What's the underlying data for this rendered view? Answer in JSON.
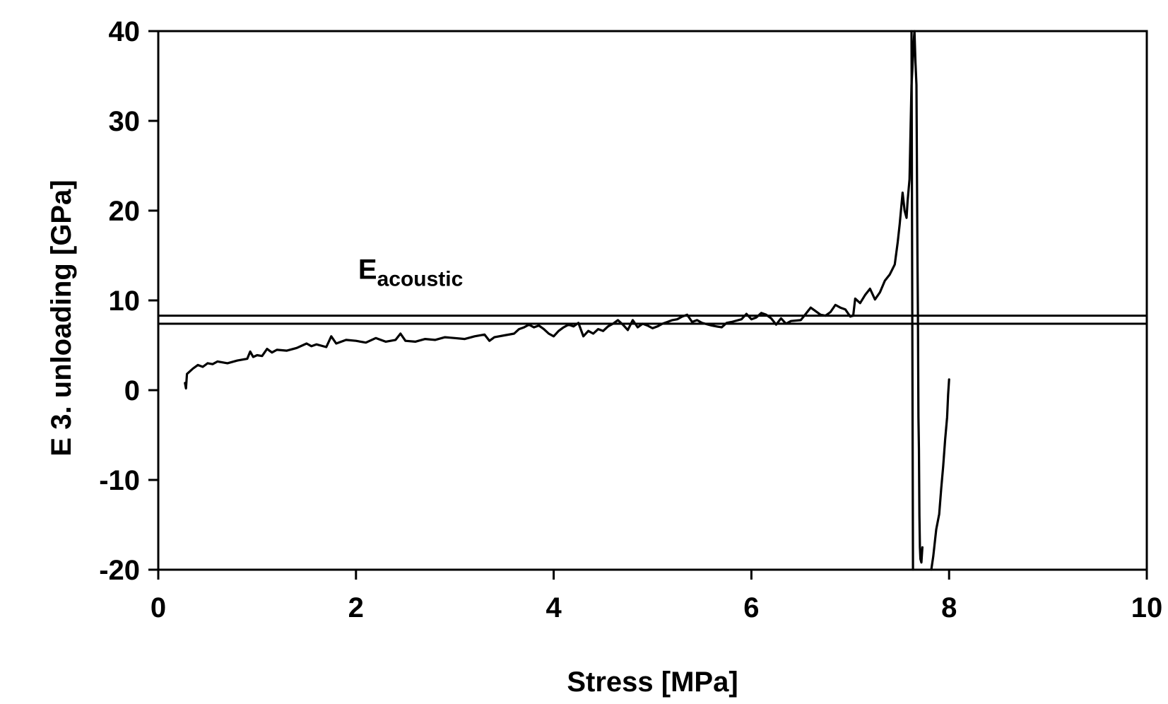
{
  "chart_data": {
    "type": "line",
    "xlabel": "Stress [MPa]",
    "ylabel": "E 3. unloading [GPa]",
    "xlim": [
      0,
      10
    ],
    "ylim": [
      -20,
      40
    ],
    "x_ticks": [
      0,
      2,
      4,
      6,
      8,
      10
    ],
    "y_ticks": [
      -20,
      -10,
      0,
      10,
      20,
      30,
      40
    ],
    "x_tick_labels": [
      "0",
      "2",
      "4",
      "6",
      "8",
      "10"
    ],
    "y_tick_labels": [
      "-20",
      "-10",
      "0",
      "10",
      "20",
      "30",
      "40"
    ],
    "grid": false,
    "legend": "none",
    "annotation": {
      "main": "E",
      "sub": "acoustic",
      "x": 1.0,
      "y": 12.5
    },
    "reference_lines": [
      8.3,
      7.4
    ],
    "series": [
      {
        "color": "#000000",
        "points": [
          [
            0.27,
            0.8
          ],
          [
            0.28,
            0.2
          ],
          [
            0.29,
            1.8
          ],
          [
            0.32,
            2.1
          ],
          [
            0.35,
            2.4
          ],
          [
            0.4,
            2.8
          ],
          [
            0.45,
            2.6
          ],
          [
            0.5,
            3.0
          ],
          [
            0.55,
            2.9
          ],
          [
            0.6,
            3.2
          ],
          [
            0.7,
            3.0
          ],
          [
            0.8,
            3.3
          ],
          [
            0.9,
            3.5
          ],
          [
            0.93,
            4.3
          ],
          [
            0.96,
            3.7
          ],
          [
            1.0,
            3.9
          ],
          [
            1.05,
            3.8
          ],
          [
            1.1,
            4.6
          ],
          [
            1.15,
            4.2
          ],
          [
            1.2,
            4.5
          ],
          [
            1.3,
            4.4
          ],
          [
            1.4,
            4.7
          ],
          [
            1.5,
            5.2
          ],
          [
            1.55,
            4.9
          ],
          [
            1.6,
            5.1
          ],
          [
            1.7,
            4.8
          ],
          [
            1.75,
            6.0
          ],
          [
            1.8,
            5.2
          ],
          [
            1.9,
            5.6
          ],
          [
            2.0,
            5.5
          ],
          [
            2.1,
            5.3
          ],
          [
            2.2,
            5.8
          ],
          [
            2.3,
            5.4
          ],
          [
            2.4,
            5.6
          ],
          [
            2.45,
            6.3
          ],
          [
            2.5,
            5.5
          ],
          [
            2.6,
            5.4
          ],
          [
            2.7,
            5.7
          ],
          [
            2.8,
            5.6
          ],
          [
            2.9,
            5.9
          ],
          [
            3.0,
            5.8
          ],
          [
            3.1,
            5.7
          ],
          [
            3.2,
            6.0
          ],
          [
            3.3,
            6.2
          ],
          [
            3.35,
            5.5
          ],
          [
            3.4,
            5.9
          ],
          [
            3.5,
            6.1
          ],
          [
            3.6,
            6.3
          ],
          [
            3.65,
            6.8
          ],
          [
            3.7,
            7.0
          ],
          [
            3.75,
            7.3
          ],
          [
            3.8,
            7.0
          ],
          [
            3.85,
            7.2
          ],
          [
            3.9,
            6.8
          ],
          [
            3.95,
            6.3
          ],
          [
            4.0,
            6.0
          ],
          [
            4.05,
            6.6
          ],
          [
            4.1,
            7.0
          ],
          [
            4.15,
            7.3
          ],
          [
            4.2,
            7.1
          ],
          [
            4.25,
            7.5
          ],
          [
            4.3,
            6.0
          ],
          [
            4.35,
            6.6
          ],
          [
            4.4,
            6.3
          ],
          [
            4.45,
            6.8
          ],
          [
            4.5,
            6.6
          ],
          [
            4.55,
            7.1
          ],
          [
            4.6,
            7.4
          ],
          [
            4.65,
            7.8
          ],
          [
            4.7,
            7.3
          ],
          [
            4.75,
            6.7
          ],
          [
            4.8,
            7.8
          ],
          [
            4.85,
            7.0
          ],
          [
            4.9,
            7.4
          ],
          [
            4.95,
            7.2
          ],
          [
            5.0,
            6.9
          ],
          [
            5.05,
            7.1
          ],
          [
            5.1,
            7.4
          ],
          [
            5.15,
            7.6
          ],
          [
            5.2,
            7.8
          ],
          [
            5.25,
            7.9
          ],
          [
            5.3,
            8.2
          ],
          [
            5.35,
            8.4
          ],
          [
            5.4,
            7.6
          ],
          [
            5.45,
            7.8
          ],
          [
            5.5,
            7.5
          ],
          [
            5.6,
            7.2
          ],
          [
            5.7,
            7.0
          ],
          [
            5.75,
            7.5
          ],
          [
            5.8,
            7.6
          ],
          [
            5.9,
            7.9
          ],
          [
            5.95,
            8.5
          ],
          [
            6.0,
            7.9
          ],
          [
            6.05,
            8.1
          ],
          [
            6.1,
            8.6
          ],
          [
            6.15,
            8.4
          ],
          [
            6.2,
            8.0
          ],
          [
            6.25,
            7.3
          ],
          [
            6.3,
            8.0
          ],
          [
            6.35,
            7.4
          ],
          [
            6.4,
            7.7
          ],
          [
            6.5,
            7.8
          ],
          [
            6.55,
            8.5
          ],
          [
            6.6,
            9.2
          ],
          [
            6.65,
            8.8
          ],
          [
            6.7,
            8.4
          ],
          [
            6.75,
            8.3
          ],
          [
            6.8,
            8.7
          ],
          [
            6.85,
            9.5
          ],
          [
            6.9,
            9.2
          ],
          [
            6.95,
            9.0
          ],
          [
            7.0,
            8.2
          ],
          [
            7.03,
            8.3
          ],
          [
            7.05,
            10.2
          ],
          [
            7.1,
            9.7
          ],
          [
            7.15,
            10.6
          ],
          [
            7.2,
            11.3
          ],
          [
            7.25,
            10.1
          ],
          [
            7.3,
            10.9
          ],
          [
            7.35,
            12.2
          ],
          [
            7.4,
            12.9
          ],
          [
            7.45,
            14.0
          ],
          [
            7.48,
            16.5
          ],
          [
            7.5,
            18.5
          ],
          [
            7.53,
            22.0
          ],
          [
            7.55,
            20.0
          ],
          [
            7.57,
            19.2
          ],
          [
            7.58,
            21.0
          ],
          [
            7.6,
            23.5
          ],
          [
            7.62,
            34.0
          ],
          [
            7.63,
            36.0
          ],
          [
            7.64,
            38.5
          ],
          [
            7.65,
            40.0
          ],
          [
            7.66,
            36.5
          ],
          [
            7.67,
            34.0
          ],
          [
            7.68,
            15.0
          ],
          [
            7.685,
            8.3
          ],
          [
            7.69,
            -3.0
          ],
          [
            7.695,
            -6.5
          ],
          [
            7.7,
            -14.0
          ],
          [
            7.705,
            -17.5
          ],
          [
            7.71,
            -18.8
          ],
          [
            7.72,
            -19.2
          ],
          [
            7.73,
            -17.5
          ]
        ]
      },
      {
        "color": "#000000",
        "points": [
          [
            7.82,
            -20.0
          ],
          [
            7.84,
            -18.5
          ],
          [
            7.87,
            -15.5
          ],
          [
            7.9,
            -13.8
          ],
          [
            7.92,
            -11.0
          ],
          [
            7.94,
            -8.5
          ],
          [
            7.96,
            -5.5
          ],
          [
            7.98,
            -3.0
          ],
          [
            7.99,
            -0.5
          ],
          [
            8.0,
            1.2
          ]
        ]
      },
      {
        "color": "#000000",
        "points": [
          [
            7.62,
            40.0
          ],
          [
            7.625,
            20.0
          ],
          [
            7.63,
            0.0
          ],
          [
            7.635,
            -20.0
          ]
        ]
      }
    ]
  }
}
